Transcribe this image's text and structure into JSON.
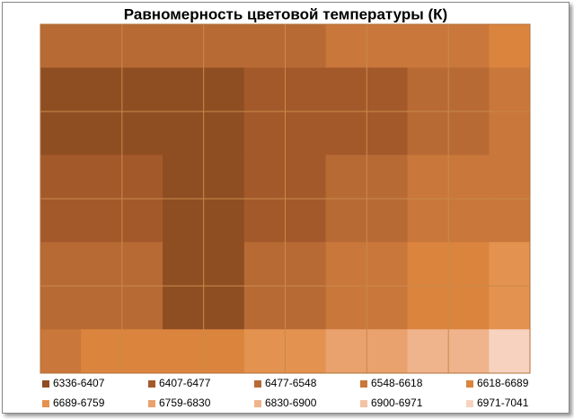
{
  "chart_data": {
    "type": "contour",
    "title": "Равномерность цветовой температуры (К)",
    "series": [
      {
        "name": "6336-6407",
        "color": "#8e4e22",
        "range": [
          6336,
          6407
        ]
      },
      {
        "name": "6407-6477",
        "color": "#a4592a",
        "range": [
          6407,
          6477
        ]
      },
      {
        "name": "6477-6548",
        "color": "#b86a35",
        "range": [
          6477,
          6548
        ]
      },
      {
        "name": "6548-6618",
        "color": "#c9773b",
        "range": [
          6548,
          6618
        ]
      },
      {
        "name": "6618-6689",
        "color": "#db843e",
        "range": [
          6618,
          6689
        ]
      },
      {
        "name": "6689-6759",
        "color": "#e4924f",
        "range": [
          6689,
          6759
        ]
      },
      {
        "name": "6759-6830",
        "color": "#e9a26d",
        "range": [
          6759,
          6830
        ]
      },
      {
        "name": "6830-6900",
        "color": "#efb48c",
        "range": [
          6830,
          6900
        ]
      },
      {
        "name": "6900-6971",
        "color": "#f3c3a4",
        "range": [
          6900,
          6971
        ]
      },
      {
        "name": "6971-7041",
        "color": "#f7d3bf",
        "range": [
          6971,
          7041
        ]
      }
    ],
    "z": [
      [
        6520,
        6500,
        6480,
        6520,
        6560,
        6600,
        6640
      ],
      [
        6380,
        6360,
        6350,
        6420,
        6470,
        6520,
        6560
      ],
      [
        6450,
        6420,
        6380,
        6460,
        6520,
        6560,
        6580
      ],
      [
        6500,
        6480,
        6370,
        6520,
        6580,
        6650,
        6700
      ],
      [
        6600,
        6640,
        6650,
        6700,
        6780,
        6900,
        7000
      ]
    ]
  }
}
